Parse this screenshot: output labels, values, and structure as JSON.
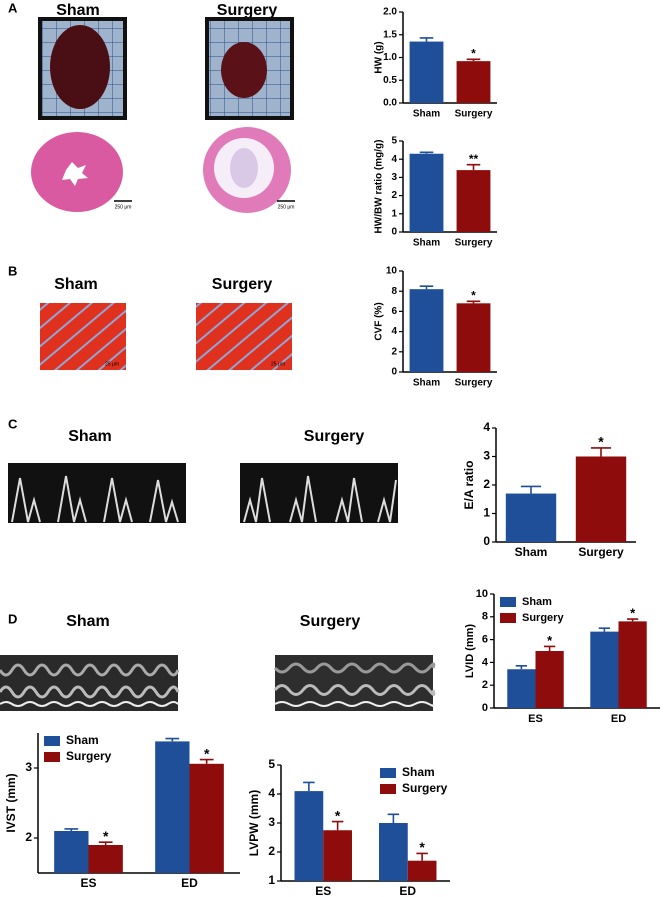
{
  "panels": [
    "A",
    "B",
    "C",
    "D"
  ],
  "images": {
    "a": {
      "groups": [
        "Sham",
        "Surgery"
      ],
      "scale_bars": [
        "250 μm",
        "250 μm"
      ]
    },
    "b": {
      "groups": [
        "Sham",
        "Surgery"
      ],
      "scale_bars": [
        "25 μm",
        "25 μm"
      ]
    },
    "c": {
      "groups": [
        "Sham",
        "Surgery"
      ]
    },
    "d": {
      "groups": [
        "Sham",
        "Surgery"
      ]
    }
  },
  "chart_data": [
    {
      "type": "bar",
      "y_label": "HW (g)",
      "categories": [
        "Sham",
        "Surgery"
      ],
      "values": [
        1.35,
        0.92
      ],
      "errors": [
        0.08,
        0.04
      ],
      "colors": [
        "#1f4f99",
        "#8e0c0c"
      ],
      "significance": [
        null,
        "*"
      ],
      "ylim": [
        0,
        2
      ],
      "yticks": [
        {
          "value": 0,
          "label": "0.0"
        },
        0.5,
        {
          "value": 1,
          "label": "1.0"
        },
        1.5,
        {
          "value": 2,
          "label": "2.0"
        }
      ]
    },
    {
      "type": "bar",
      "y_label": "HW/BW ratio (mg/g)",
      "categories": [
        "Sham",
        "Surgery"
      ],
      "values": [
        4.3,
        3.4
      ],
      "errors": [
        0.08,
        0.3
      ],
      "colors": [
        "#1f4f99",
        "#8e0c0c"
      ],
      "significance": [
        null,
        "**"
      ],
      "ylim": [
        0,
        5
      ],
      "yticks": [
        0,
        1,
        2,
        3,
        4,
        5
      ]
    },
    {
      "type": "bar",
      "y_label": "CVF (%)",
      "categories": [
        "Sham",
        "Surgery"
      ],
      "values": [
        8.2,
        6.8
      ],
      "errors": [
        0.3,
        0.2
      ],
      "colors": [
        "#1f4f99",
        "#8e0c0c"
      ],
      "significance": [
        null,
        "*"
      ],
      "ylim": [
        0,
        10
      ],
      "yticks": [
        0,
        2,
        4,
        6,
        8,
        10
      ]
    },
    {
      "type": "bar",
      "y_label": "E/A ratio",
      "categories": [
        "Sham",
        "Surgery"
      ],
      "values": [
        1.7,
        3.0
      ],
      "errors": [
        0.25,
        0.3
      ],
      "colors": [
        "#1f4f99",
        "#8e0c0c"
      ],
      "significance": [
        null,
        "*"
      ],
      "ylim": [
        0,
        4
      ],
      "yticks": [
        0,
        1,
        2,
        3,
        4
      ]
    },
    {
      "type": "grouped_bar",
      "y_label": "LVID (mm)",
      "categories": [
        "ES",
        "ED"
      ],
      "legend": "upper-left",
      "series": [
        {
          "name": "Sham",
          "color": "#1f4f99",
          "values": [
            3.4,
            6.7
          ],
          "errors": [
            0.3,
            0.3
          ]
        },
        {
          "name": "Surgery",
          "color": "#8e0c0c",
          "values": [
            5.0,
            7.6
          ],
          "errors": [
            0.4,
            0.2
          ],
          "significance": [
            "*",
            "*"
          ]
        }
      ],
      "ylim": [
        0,
        10
      ],
      "yticks": [
        0,
        2,
        4,
        6,
        8,
        10
      ]
    },
    {
      "type": "grouped_bar",
      "y_label": "IVST (mm)",
      "categories": [
        "ES",
        "ED"
      ],
      "legend": "upper-left",
      "series": [
        {
          "name": "Sham",
          "color": "#1f4f99",
          "values": [
            2.1,
            3.38
          ],
          "errors": [
            0.03,
            0.04
          ]
        },
        {
          "name": "Surgery",
          "color": "#8e0c0c",
          "values": [
            1.9,
            3.06
          ],
          "errors": [
            0.04,
            0.06
          ],
          "significance": [
            "*",
            "*"
          ]
        }
      ],
      "ylim": [
        1.5,
        3.5
      ],
      "yticks": [
        2,
        3
      ]
    },
    {
      "type": "grouped_bar",
      "y_label": "LVPW (mm)",
      "categories": [
        "ES",
        "ED"
      ],
      "legend": "upper-right",
      "series": [
        {
          "name": "Sham",
          "color": "#1f4f99",
          "values": [
            4.1,
            3.0
          ],
          "errors": [
            0.3,
            0.3
          ]
        },
        {
          "name": "Surgery",
          "color": "#8e0c0c",
          "values": [
            2.75,
            1.7
          ],
          "errors": [
            0.3,
            0.25
          ],
          "significance": [
            "*",
            "*"
          ]
        }
      ],
      "ylim": [
        1,
        5
      ],
      "yticks": [
        1,
        2,
        3,
        4,
        5
      ]
    }
  ]
}
